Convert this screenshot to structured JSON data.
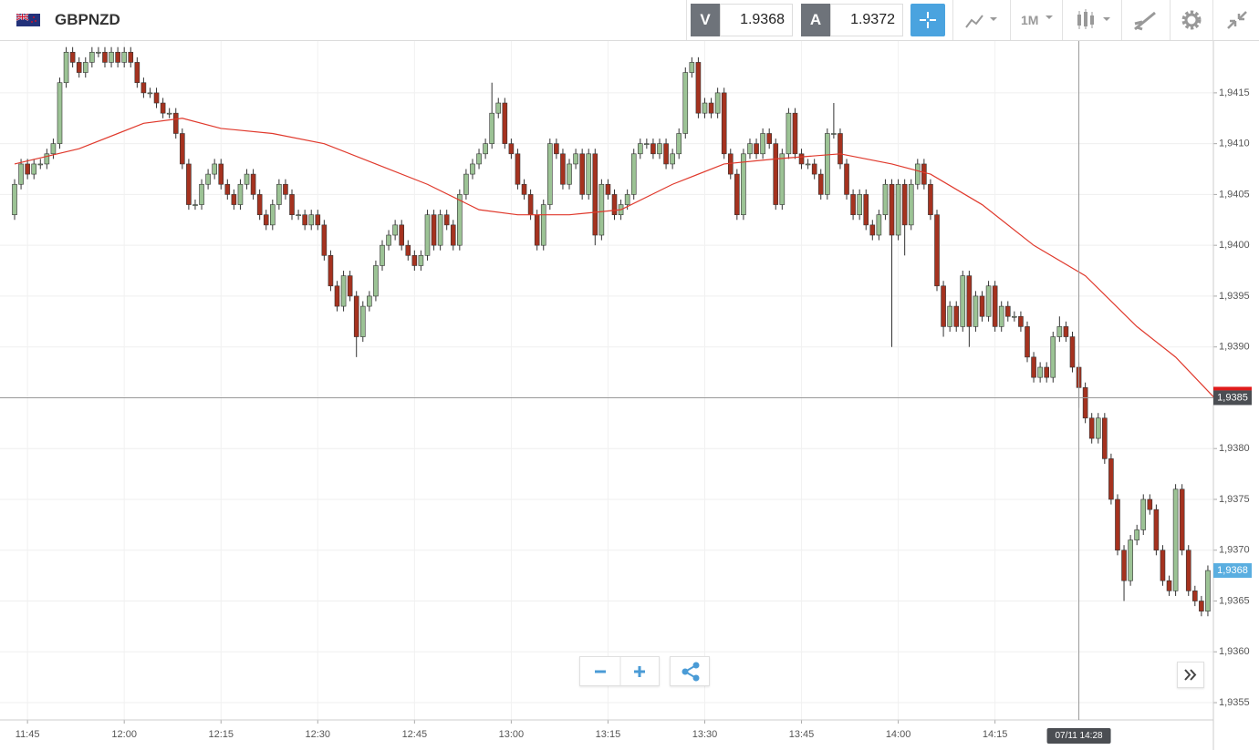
{
  "toolbar": {
    "symbol": "GBPNZD",
    "sell_label": "V",
    "sell_price": "1.9368",
    "buy_label": "A",
    "buy_price": "1.9372",
    "timeframe": "1M"
  },
  "chart_data": {
    "type": "candlestick",
    "up_color": "#9cc395",
    "down_color": "#a5321f",
    "ylim": [
      1.93533,
      1.94201
    ],
    "yticks": [
      {
        "value": 1.9355,
        "label": "1,9355"
      },
      {
        "value": 1.936,
        "label": "1,9360"
      },
      {
        "value": 1.9365,
        "label": "1,9365"
      },
      {
        "value": 1.937,
        "label": "1,9370"
      },
      {
        "value": 1.9375,
        "label": "1,9375"
      },
      {
        "value": 1.938,
        "label": "1,9380"
      },
      {
        "value": 1.9385,
        "label": "1,9385"
      },
      {
        "value": 1.939,
        "label": "1,9390"
      },
      {
        "value": 1.9395,
        "label": "1,9395"
      },
      {
        "value": 1.94,
        "label": "1,9400"
      },
      {
        "value": 1.9405,
        "label": "1,9405"
      },
      {
        "value": 1.941,
        "label": "1,9410"
      },
      {
        "value": 1.9415,
        "label": "1,9415"
      }
    ],
    "grid": true,
    "categories": [
      null,
      null,
      "11:45",
      null,
      null,
      null,
      null,
      null,
      null,
      null,
      null,
      null,
      null,
      null,
      null,
      null,
      null,
      "12:00",
      null,
      null,
      null,
      null,
      null,
      null,
      null,
      null,
      null,
      null,
      null,
      null,
      null,
      null,
      "12:15",
      null,
      null,
      null,
      null,
      null,
      null,
      null,
      null,
      null,
      null,
      null,
      null,
      null,
      null,
      "12:30",
      null,
      null,
      null,
      null,
      null,
      null,
      null,
      null,
      null,
      null,
      null,
      null,
      null,
      null,
      "12:45",
      null,
      null,
      null,
      null,
      null,
      null,
      null,
      null,
      null,
      null,
      null,
      null,
      null,
      null,
      "13:00",
      null,
      null,
      null,
      null,
      null,
      null,
      null,
      null,
      null,
      null,
      null,
      null,
      null,
      null,
      "13:15",
      null,
      null,
      null,
      null,
      null,
      null,
      null,
      null,
      null,
      null,
      null,
      null,
      null,
      null,
      "13:30",
      null,
      null,
      null,
      null,
      null,
      null,
      null,
      null,
      null,
      null,
      null,
      null,
      null,
      null,
      "13:45",
      null,
      null,
      null,
      null,
      null,
      null,
      null,
      null,
      null,
      null,
      null,
      null,
      null,
      null,
      "14:00",
      null,
      null,
      null,
      null,
      null,
      null,
      null,
      null,
      null,
      null,
      null,
      null,
      null,
      null,
      "14:15",
      null,
      null,
      null,
      null,
      null,
      null,
      null,
      null,
      null,
      null,
      null,
      null,
      null,
      null,
      null,
      null,
      null,
      null,
      null,
      null,
      null,
      null,
      null,
      null,
      null,
      null,
      null,
      null,
      null,
      null,
      null,
      null,
      null
    ],
    "candles": [
      [
        1.9403,
        1.94065,
        1.94025,
        1.9406
      ],
      [
        1.9406,
        1.94085,
        1.94055,
        1.9408
      ],
      [
        1.9408,
        1.94085,
        1.94065,
        1.9407
      ],
      [
        1.9407,
        1.94085,
        1.94065,
        1.9408
      ],
      [
        1.9408,
        1.94085,
        1.94075,
        1.9408
      ],
      [
        1.9408,
        1.94095,
        1.94075,
        1.9409
      ],
      [
        1.9409,
        1.94105,
        1.94085,
        1.941
      ],
      [
        1.941,
        1.94165,
        1.94095,
        1.9416
      ],
      [
        1.9416,
        1.94195,
        1.94155,
        1.9419
      ],
      [
        1.9419,
        1.94195,
        1.94175,
        1.9418
      ],
      [
        1.9418,
        1.94185,
        1.94165,
        1.9417
      ],
      [
        1.9417,
        1.94185,
        1.94165,
        1.9418
      ],
      [
        1.9418,
        1.94195,
        1.94175,
        1.9419
      ],
      [
        1.9419,
        1.94195,
        1.94185,
        1.9419
      ],
      [
        1.9419,
        1.94195,
        1.94175,
        1.9418
      ],
      [
        1.9418,
        1.94195,
        1.94175,
        1.9419
      ],
      [
        1.9419,
        1.94195,
        1.94175,
        1.9418
      ],
      [
        1.9418,
        1.94195,
        1.94175,
        1.9419
      ],
      [
        1.9419,
        1.94195,
        1.94175,
        1.9418
      ],
      [
        1.9418,
        1.94185,
        1.94155,
        1.9416
      ],
      [
        1.9416,
        1.94165,
        1.94145,
        1.9415
      ],
      [
        1.9415,
        1.94155,
        1.94145,
        1.9415
      ],
      [
        1.9415,
        1.94155,
        1.94135,
        1.9414
      ],
      [
        1.9414,
        1.94145,
        1.94125,
        1.9413
      ],
      [
        1.9413,
        1.94135,
        1.94125,
        1.9413
      ],
      [
        1.9413,
        1.94135,
        1.94105,
        1.9411
      ],
      [
        1.9411,
        1.94115,
        1.94075,
        1.9408
      ],
      [
        1.9408,
        1.94085,
        1.94035,
        1.9404
      ],
      [
        1.9404,
        1.94045,
        1.94035,
        1.9404
      ],
      [
        1.9404,
        1.94065,
        1.94035,
        1.9406
      ],
      [
        1.9406,
        1.94075,
        1.94055,
        1.9407
      ],
      [
        1.9407,
        1.94085,
        1.94065,
        1.9408
      ],
      [
        1.9408,
        1.94085,
        1.94055,
        1.9406
      ],
      [
        1.9406,
        1.94065,
        1.94045,
        1.9405
      ],
      [
        1.9405,
        1.94055,
        1.94035,
        1.9404
      ],
      [
        1.9404,
        1.94065,
        1.94035,
        1.9406
      ],
      [
        1.9406,
        1.94075,
        1.94055,
        1.9407
      ],
      [
        1.9407,
        1.94075,
        1.94045,
        1.9405
      ],
      [
        1.9405,
        1.94055,
        1.94025,
        1.9403
      ],
      [
        1.9403,
        1.94035,
        1.94015,
        1.9402
      ],
      [
        1.9402,
        1.94045,
        1.94015,
        1.9404
      ],
      [
        1.9404,
        1.94065,
        1.94035,
        1.9406
      ],
      [
        1.9406,
        1.94065,
        1.94045,
        1.9405
      ],
      [
        1.9405,
        1.94055,
        1.94025,
        1.9403
      ],
      [
        1.9403,
        1.94035,
        1.94025,
        1.9403
      ],
      [
        1.9403,
        1.94035,
        1.94015,
        1.9402
      ],
      [
        1.9402,
        1.94035,
        1.94015,
        1.9403
      ],
      [
        1.9403,
        1.94035,
        1.94015,
        1.9402
      ],
      [
        1.9402,
        1.94025,
        1.93985,
        1.9399
      ],
      [
        1.9399,
        1.93995,
        1.93955,
        1.9396
      ],
      [
        1.9396,
        1.93965,
        1.93935,
        1.9394
      ],
      [
        1.9394,
        1.93975,
        1.93935,
        1.9397
      ],
      [
        1.9397,
        1.93975,
        1.93945,
        1.9395
      ],
      [
        1.9395,
        1.93955,
        1.9389,
        1.9391
      ],
      [
        1.9391,
        1.93945,
        1.93905,
        1.9394
      ],
      [
        1.9394,
        1.93955,
        1.93935,
        1.9395
      ],
      [
        1.9395,
        1.93985,
        1.93945,
        1.9398
      ],
      [
        1.9398,
        1.94005,
        1.93975,
        1.94
      ],
      [
        1.94,
        1.94015,
        1.93995,
        1.9401
      ],
      [
        1.9401,
        1.94025,
        1.94005,
        1.9402
      ],
      [
        1.9402,
        1.94025,
        1.93995,
        1.94
      ],
      [
        1.94,
        1.94005,
        1.93985,
        1.9399
      ],
      [
        1.9399,
        1.93995,
        1.93975,
        1.9398
      ],
      [
        1.9398,
        1.93995,
        1.93975,
        1.9399
      ],
      [
        1.9399,
        1.94035,
        1.93985,
        1.9403
      ],
      [
        1.9403,
        1.94035,
        1.93995,
        1.94
      ],
      [
        1.94,
        1.94035,
        1.93995,
        1.9403
      ],
      [
        1.9403,
        1.94035,
        1.94015,
        1.9402
      ],
      [
        1.9402,
        1.94025,
        1.93995,
        1.94
      ],
      [
        1.94,
        1.94055,
        1.93995,
        1.9405
      ],
      [
        1.9405,
        1.94075,
        1.94045,
        1.9407
      ],
      [
        1.9407,
        1.94085,
        1.94065,
        1.9408
      ],
      [
        1.9408,
        1.94095,
        1.94075,
        1.9409
      ],
      [
        1.9409,
        1.94105,
        1.94085,
        1.941
      ],
      [
        1.941,
        1.9416,
        1.94095,
        1.9413
      ],
      [
        1.9413,
        1.94145,
        1.94125,
        1.9414
      ],
      [
        1.9414,
        1.94145,
        1.94095,
        1.941
      ],
      [
        1.941,
        1.94105,
        1.94085,
        1.9409
      ],
      [
        1.9409,
        1.94095,
        1.94055,
        1.9406
      ],
      [
        1.9406,
        1.94065,
        1.94045,
        1.9405
      ],
      [
        1.9405,
        1.94055,
        1.94025,
        1.9403
      ],
      [
        1.9403,
        1.94035,
        1.93995,
        1.94
      ],
      [
        1.94,
        1.94045,
        1.93995,
        1.9404
      ],
      [
        1.9404,
        1.94105,
        1.94035,
        1.941
      ],
      [
        1.941,
        1.94105,
        1.94085,
        1.9409
      ],
      [
        1.9409,
        1.94095,
        1.94055,
        1.9406
      ],
      [
        1.9406,
        1.94085,
        1.94055,
        1.9408
      ],
      [
        1.9408,
        1.94095,
        1.94075,
        1.9409
      ],
      [
        1.9409,
        1.94095,
        1.94045,
        1.9405
      ],
      [
        1.9405,
        1.94095,
        1.94045,
        1.9409
      ],
      [
        1.9409,
        1.94095,
        1.94,
        1.9401
      ],
      [
        1.9401,
        1.94065,
        1.94005,
        1.9406
      ],
      [
        1.9406,
        1.94065,
        1.94045,
        1.9405
      ],
      [
        1.9405,
        1.94055,
        1.94025,
        1.9403
      ],
      [
        1.9403,
        1.94045,
        1.94025,
        1.9404
      ],
      [
        1.9404,
        1.94055,
        1.94035,
        1.9405
      ],
      [
        1.9405,
        1.94095,
        1.94045,
        1.9409
      ],
      [
        1.9409,
        1.94105,
        1.94085,
        1.941
      ],
      [
        1.941,
        1.94105,
        1.94095,
        1.941
      ],
      [
        1.941,
        1.94105,
        1.94085,
        1.9409
      ],
      [
        1.9409,
        1.94105,
        1.94085,
        1.941
      ],
      [
        1.941,
        1.94105,
        1.94075,
        1.9408
      ],
      [
        1.9408,
        1.94095,
        1.94075,
        1.9409
      ],
      [
        1.9409,
        1.94115,
        1.94085,
        1.9411
      ],
      [
        1.9411,
        1.94175,
        1.94105,
        1.9417
      ],
      [
        1.9417,
        1.94185,
        1.94165,
        1.9418
      ],
      [
        1.9418,
        1.94185,
        1.94125,
        1.9413
      ],
      [
        1.9413,
        1.94145,
        1.94125,
        1.9414
      ],
      [
        1.9414,
        1.94145,
        1.94125,
        1.9413
      ],
      [
        1.9413,
        1.94155,
        1.94125,
        1.9415
      ],
      [
        1.9415,
        1.94155,
        1.94085,
        1.9409
      ],
      [
        1.9409,
        1.94095,
        1.94065,
        1.9407
      ],
      [
        1.9407,
        1.94075,
        1.94025,
        1.9403
      ],
      [
        1.9403,
        1.94095,
        1.94025,
        1.9409
      ],
      [
        1.9409,
        1.94105,
        1.94085,
        1.941
      ],
      [
        1.941,
        1.94105,
        1.94085,
        1.9409
      ],
      [
        1.9409,
        1.94115,
        1.94085,
        1.9411
      ],
      [
        1.9411,
        1.94115,
        1.94095,
        1.941
      ],
      [
        1.941,
        1.94105,
        1.94035,
        1.9404
      ],
      [
        1.9404,
        1.94095,
        1.94035,
        1.9409
      ],
      [
        1.9409,
        1.94135,
        1.94085,
        1.9413
      ],
      [
        1.9413,
        1.94135,
        1.94085,
        1.9409
      ],
      [
        1.9409,
        1.94095,
        1.94075,
        1.9408
      ],
      [
        1.9408,
        1.94085,
        1.94075,
        1.9408
      ],
      [
        1.9408,
        1.94085,
        1.94065,
        1.9407
      ],
      [
        1.9407,
        1.94075,
        1.94045,
        1.9405
      ],
      [
        1.9405,
        1.94115,
        1.94045,
        1.9411
      ],
      [
        1.9411,
        1.9414,
        1.94105,
        1.9411
      ],
      [
        1.9411,
        1.94115,
        1.94075,
        1.9408
      ],
      [
        1.9408,
        1.94085,
        1.94045,
        1.9405
      ],
      [
        1.9405,
        1.94055,
        1.94025,
        1.9403
      ],
      [
        1.9403,
        1.94055,
        1.94025,
        1.9405
      ],
      [
        1.9405,
        1.94055,
        1.94015,
        1.9402
      ],
      [
        1.9402,
        1.94025,
        1.94005,
        1.9401
      ],
      [
        1.9401,
        1.94035,
        1.94005,
        1.9403
      ],
      [
        1.9403,
        1.94065,
        1.94025,
        1.9406
      ],
      [
        1.9406,
        1.94065,
        1.939,
        1.9401
      ],
      [
        1.9401,
        1.94065,
        1.94005,
        1.9406
      ],
      [
        1.9406,
        1.94065,
        1.9399,
        1.9402
      ],
      [
        1.9402,
        1.94065,
        1.94015,
        1.9406
      ],
      [
        1.9406,
        1.94085,
        1.94055,
        1.9408
      ],
      [
        1.9408,
        1.94085,
        1.94055,
        1.9406
      ],
      [
        1.9406,
        1.94065,
        1.94025,
        1.9403
      ],
      [
        1.9403,
        1.94035,
        1.93955,
        1.9396
      ],
      [
        1.9396,
        1.93965,
        1.9391,
        1.9392
      ],
      [
        1.9392,
        1.93945,
        1.93915,
        1.9394
      ],
      [
        1.9394,
        1.93945,
        1.93915,
        1.9392
      ],
      [
        1.9392,
        1.93975,
        1.93915,
        1.9397
      ],
      [
        1.9397,
        1.93975,
        1.939,
        1.9392
      ],
      [
        1.9392,
        1.93955,
        1.93915,
        1.9395
      ],
      [
        1.9395,
        1.93955,
        1.93925,
        1.9393
      ],
      [
        1.9393,
        1.93965,
        1.93925,
        1.9396
      ],
      [
        1.9396,
        1.93965,
        1.93915,
        1.9392
      ],
      [
        1.9392,
        1.93945,
        1.93915,
        1.9394
      ],
      [
        1.9394,
        1.93945,
        1.93925,
        1.9393
      ],
      [
        1.9393,
        1.93935,
        1.93925,
        1.9393
      ],
      [
        1.9393,
        1.93935,
        1.93915,
        1.9392
      ],
      [
        1.9392,
        1.93925,
        1.93885,
        1.9389
      ],
      [
        1.9389,
        1.93895,
        1.93865,
        1.9387
      ],
      [
        1.9387,
        1.93885,
        1.93865,
        1.9388
      ],
      [
        1.9388,
        1.93885,
        1.93865,
        1.9387
      ],
      [
        1.9387,
        1.93915,
        1.93865,
        1.9391
      ],
      [
        1.9391,
        1.9393,
        1.93905,
        1.9392
      ],
      [
        1.9392,
        1.93925,
        1.93905,
        1.9391
      ],
      [
        1.9391,
        1.93915,
        1.93875,
        1.9388
      ],
      [
        1.9388,
        1.93885,
        1.9384,
        1.9386
      ],
      [
        1.9386,
        1.93865,
        1.93825,
        1.9383
      ],
      [
        1.9383,
        1.93835,
        1.93805,
        1.9381
      ],
      [
        1.9381,
        1.93835,
        1.93805,
        1.9383
      ],
      [
        1.9383,
        1.93835,
        1.93785,
        1.9379
      ],
      [
        1.9379,
        1.93795,
        1.93745,
        1.9375
      ],
      [
        1.9375,
        1.93755,
        1.93695,
        1.937
      ],
      [
        1.937,
        1.93705,
        1.9365,
        1.9367
      ],
      [
        1.9367,
        1.93715,
        1.93665,
        1.9371
      ],
      [
        1.9371,
        1.93725,
        1.93705,
        1.9372
      ],
      [
        1.9372,
        1.93755,
        1.93715,
        1.9375
      ],
      [
        1.9375,
        1.93755,
        1.93735,
        1.9374
      ],
      [
        1.9374,
        1.93745,
        1.93695,
        1.937
      ],
      [
        1.937,
        1.93705,
        1.93665,
        1.9367
      ],
      [
        1.9367,
        1.93675,
        1.93655,
        1.9366
      ],
      [
        1.9366,
        1.93765,
        1.93655,
        1.9376
      ],
      [
        1.9376,
        1.93765,
        1.93695,
        1.937
      ],
      [
        1.937,
        1.93705,
        1.93655,
        1.9366
      ],
      [
        1.9366,
        1.93665,
        1.93645,
        1.9365
      ],
      [
        1.9365,
        1.93655,
        1.93635,
        1.9364
      ],
      [
        1.9364,
        1.93685,
        1.93635,
        1.9368
      ]
    ],
    "ma": {
      "color": "#e0392c",
      "x": [
        0,
        10,
        20,
        26,
        32,
        40,
        48,
        56,
        64,
        72,
        78,
        86,
        94,
        102,
        110,
        118,
        128,
        136,
        142,
        150,
        158,
        166,
        174,
        180,
        186
      ],
      "values": [
        1.9408,
        1.94095,
        1.9412,
        1.94125,
        1.94115,
        1.9411,
        1.941,
        1.9408,
        1.9406,
        1.94035,
        1.9403,
        1.9403,
        1.94035,
        1.9406,
        1.9408,
        1.94085,
        1.9409,
        1.9408,
        1.9407,
        1.9404,
        1.94,
        1.9397,
        1.9392,
        1.9389,
        1.9385
      ]
    },
    "crosshair_price": {
      "value": 1.9385,
      "label": "1,9385"
    },
    "crosshair_time": {
      "value": 165,
      "label": "07/11 14:28"
    },
    "last_price": {
      "value": 1.9368,
      "label": "1,9368"
    }
  }
}
